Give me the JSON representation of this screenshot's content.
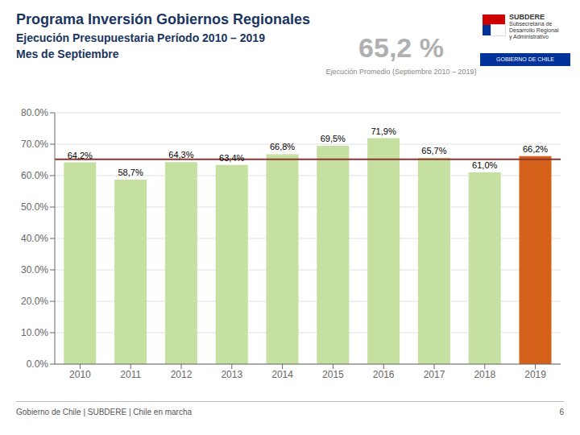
{
  "chart_data": {
    "type": "bar",
    "title": "Programa Inversión Gobiernos Regionales",
    "subtitle": [
      "Ejecución Presupuestaria Período 2010 – 2019",
      "Mes de Septiembre"
    ],
    "categories": [
      "2010",
      "2011",
      "2012",
      "2013",
      "2014",
      "2015",
      "2016",
      "2017",
      "2018",
      "2019"
    ],
    "values": [
      64.2,
      58.7,
      64.3,
      63.4,
      66.8,
      69.5,
      71.9,
      65.7,
      61.0,
      66.2
    ],
    "value_labels": [
      "64,2%",
      "58,7%",
      "64,3%",
      "63,4%",
      "66,8%",
      "69,5%",
      "71,9%",
      "65,7%",
      "61,0%",
      "66,2%"
    ],
    "data_labels": true,
    "colors": [
      "#c5e0a0",
      "#c5e0a0",
      "#c5e0a0",
      "#c5e0a0",
      "#c5e0a0",
      "#c5e0a0",
      "#c5e0a0",
      "#c5e0a0",
      "#c5e0a0",
      "#d4601a"
    ],
    "reference_line": {
      "value": 65.2,
      "color": "#8b3535"
    },
    "ylim": [
      0,
      80
    ],
    "yticks": [
      {
        "value": 0,
        "label": "0.0%"
      },
      {
        "value": 10,
        "label": "10.0%"
      },
      {
        "value": 20,
        "label": "20.0%"
      },
      {
        "value": 30,
        "label": "30.0%"
      },
      {
        "value": 40,
        "label": "40.0%"
      },
      {
        "value": 50,
        "label": "50.0%"
      },
      {
        "value": 60,
        "label": "60.0%"
      },
      {
        "value": 70,
        "label": "70.0%"
      },
      {
        "value": 80,
        "label": "80.0%"
      }
    ],
    "grid": true,
    "annotations": [
      "65,2 %",
      "Ejecución Promedio (Septiembre 2010 – 2019)",
      "Gobierno de Chile | SUBDERE | Chile en marcha",
      "6",
      "SUBDERE",
      "Subsecretaría de",
      "Desarrollo Regional",
      "y Administrativo",
      "GOBIERNO DE CHILE"
    ]
  }
}
